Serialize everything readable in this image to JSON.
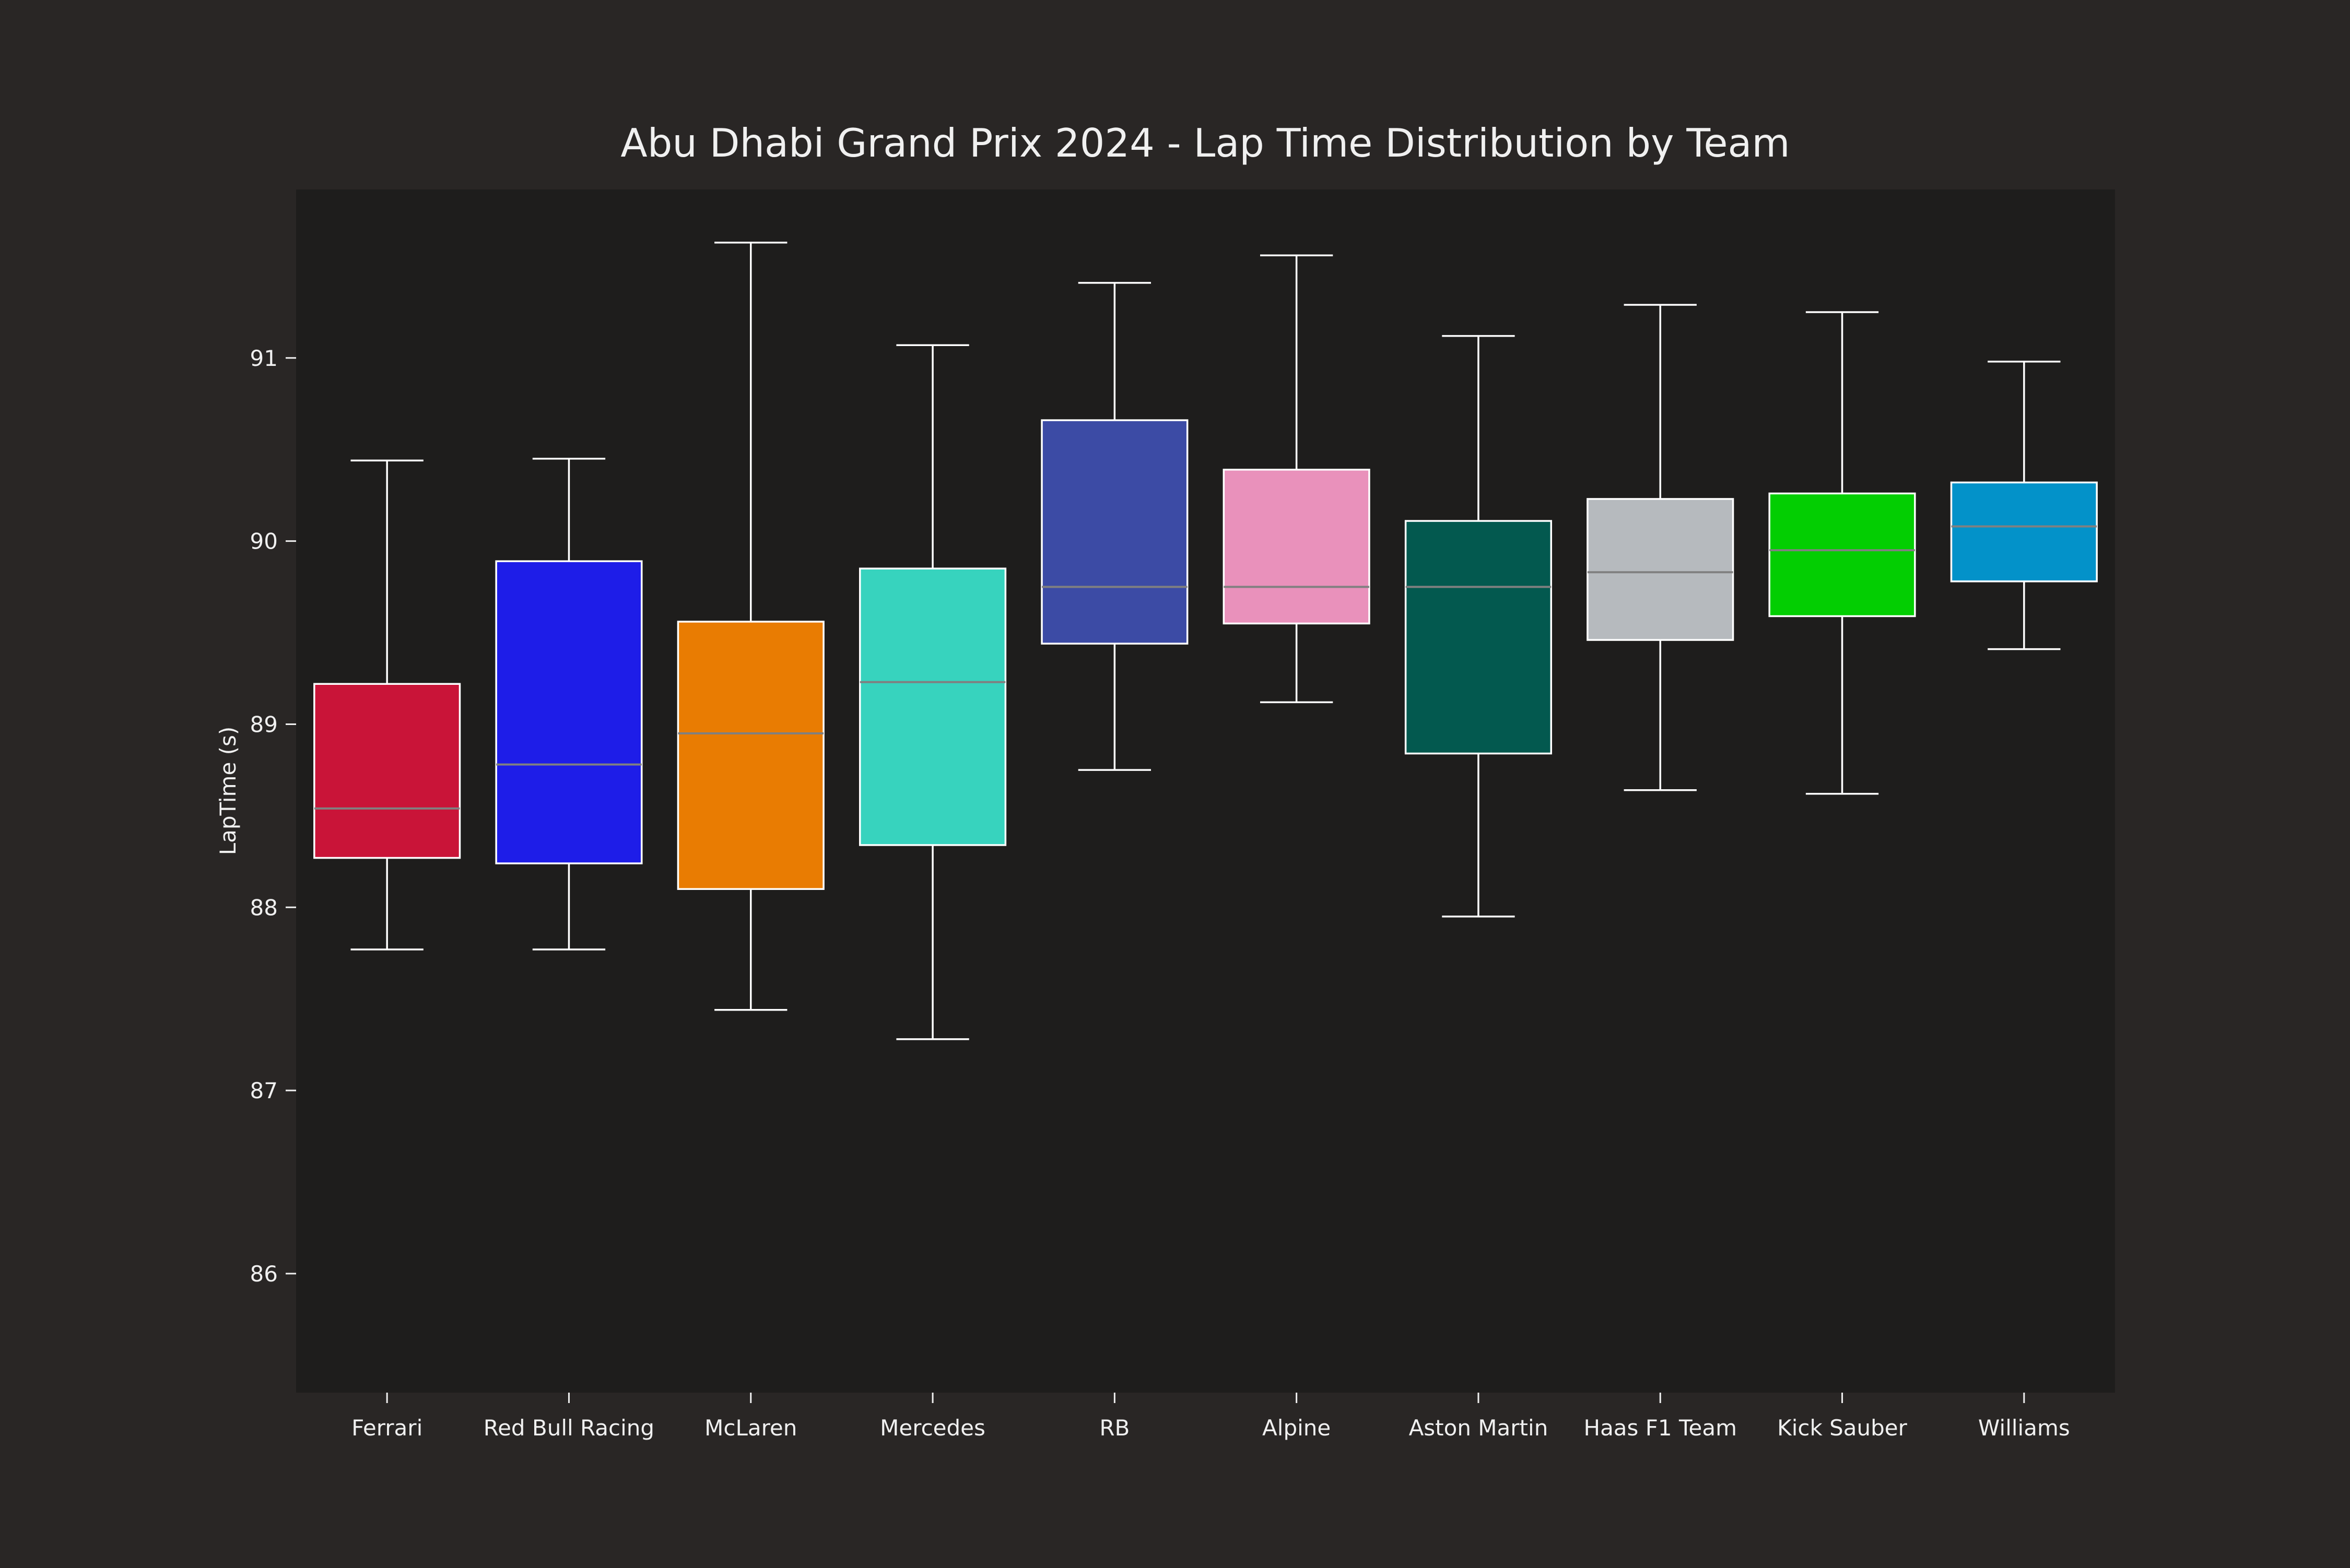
{
  "colors": {
    "figure_background": "#292625",
    "axes_background": "#1e1d1c",
    "text": "#f0f0f0",
    "box_edge": "#ffffff",
    "median_line": "#808080",
    "whisker": "#ffffff"
  },
  "chart_data": {
    "type": "box",
    "title": "Abu Dhabi Grand Prix 2024 - Lap Time Distribution by Team",
    "xlabel": "",
    "ylabel": "LapTime (s)",
    "ylim": [
      85.35,
      91.92
    ],
    "yticks": [
      86,
      87,
      88,
      89,
      90,
      91
    ],
    "ytick_labels": [
      "86",
      "87",
      "88",
      "89",
      "90",
      "91"
    ],
    "grid": false,
    "legend": "none",
    "categories": [
      "Ferrari",
      "Red Bull Racing",
      "McLaren",
      "Mercedes",
      "RB",
      "Alpine",
      "Aston Martin",
      "Haas F1 Team",
      "Kick Sauber",
      "Williams"
    ],
    "boxes": [
      {
        "category": "Ferrari",
        "color": "#dc143c",
        "whisker_low": 87.77,
        "q1": 88.27,
        "median": 88.54,
        "q3": 89.22,
        "whisker_high": 90.44
      },
      {
        "category": "Red Bull Racing",
        "color": "#1e1eff",
        "whisker_low": 87.77,
        "q1": 88.24,
        "median": 88.78,
        "q3": 89.89,
        "whisker_high": 90.45
      },
      {
        "category": "McLaren",
        "color": "#ff8700",
        "whisker_low": 87.44,
        "q1": 88.1,
        "median": 88.95,
        "q3": 89.56,
        "whisker_high": 91.63
      },
      {
        "category": "Mercedes",
        "color": "#3ae8d0",
        "whisker_low": 87.28,
        "q1": 88.34,
        "median": 89.23,
        "q3": 89.85,
        "whisker_high": 91.07
      },
      {
        "category": "RB",
        "color": "#3f51b5",
        "whisker_low": 88.75,
        "q1": 89.44,
        "median": 89.75,
        "q3": 90.66,
        "whisker_high": 91.41
      },
      {
        "category": "Alpine",
        "color": "#ff9ecd",
        "whisker_low": 89.12,
        "q1": 89.55,
        "median": 89.75,
        "q3": 90.39,
        "whisker_high": 91.56
      },
      {
        "category": "Aston Martin",
        "color": "#006155",
        "whisker_low": 87.95,
        "q1": 88.84,
        "median": 89.75,
        "q3": 90.11,
        "whisker_high": 91.12
      },
      {
        "category": "Haas F1 Team",
        "color": "#c7ccd0",
        "whisker_low": 88.64,
        "q1": 89.46,
        "median": 89.83,
        "q3": 90.23,
        "whisker_high": 91.29
      },
      {
        "category": "Kick Sauber",
        "color": "#00e200",
        "whisker_low": 88.62,
        "q1": 89.59,
        "median": 89.95,
        "q3": 90.26,
        "whisker_high": 91.25
      },
      {
        "category": "Williams",
        "color": "#00a0dd",
        "whisker_low": 89.41,
        "q1": 89.78,
        "median": 90.08,
        "q3": 90.32,
        "whisker_high": 90.98
      }
    ]
  }
}
